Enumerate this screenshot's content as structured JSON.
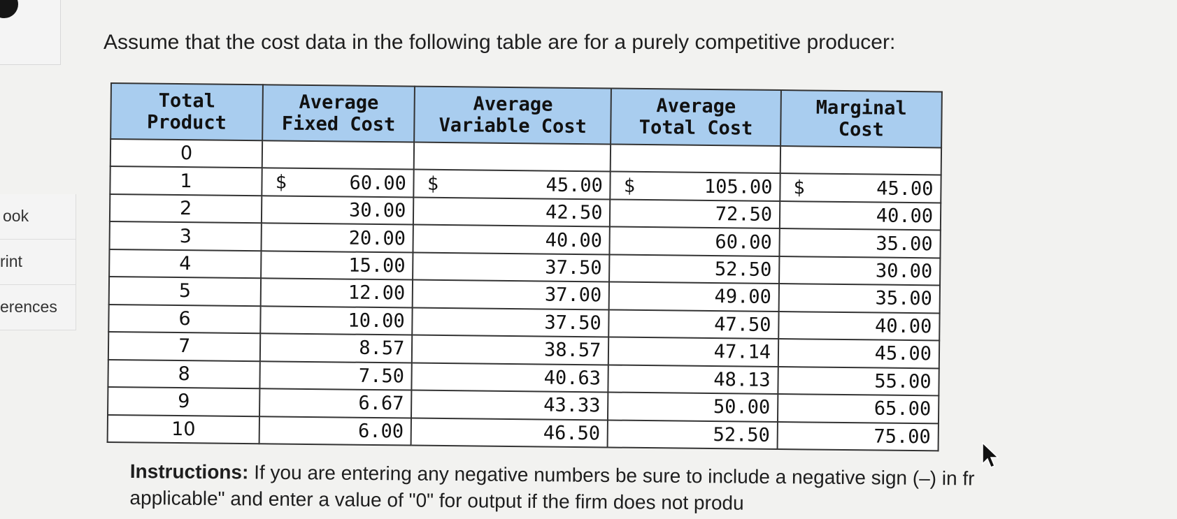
{
  "question": {
    "text": "Assume that the cost data in the following table are for a purely competitive producer:"
  },
  "sidebar": {
    "items": [
      {
        "label": "ook"
      },
      {
        "label": "rint"
      },
      {
        "label": "erences"
      }
    ]
  },
  "table": {
    "headers": [
      {
        "line1": "Total",
        "line2": "Product"
      },
      {
        "line1": "Average",
        "line2": "Fixed Cost"
      },
      {
        "line1": "Average",
        "line2": "Variable Cost"
      },
      {
        "line1": "Average",
        "line2": "Total Cost"
      },
      {
        "line1": "Marginal",
        "line2": "Cost"
      }
    ],
    "currency_symbol": "$",
    "rows": [
      {
        "tp": "0",
        "afc": "",
        "avc": "",
        "atc": "",
        "mc": ""
      },
      {
        "tp": "1",
        "afc": "60.00",
        "avc": "45.00",
        "atc": "105.00",
        "mc": "45.00"
      },
      {
        "tp": "2",
        "afc": "30.00",
        "avc": "42.50",
        "atc": "72.50",
        "mc": "40.00"
      },
      {
        "tp": "3",
        "afc": "20.00",
        "avc": "40.00",
        "atc": "60.00",
        "mc": "35.00"
      },
      {
        "tp": "4",
        "afc": "15.00",
        "avc": "37.50",
        "atc": "52.50",
        "mc": "30.00"
      },
      {
        "tp": "5",
        "afc": "12.00",
        "avc": "37.00",
        "atc": "49.00",
        "mc": "35.00"
      },
      {
        "tp": "6",
        "afc": "10.00",
        "avc": "37.50",
        "atc": "47.50",
        "mc": "40.00"
      },
      {
        "tp": "7",
        "afc": "8.57",
        "avc": "38.57",
        "atc": "47.14",
        "mc": "45.00"
      },
      {
        "tp": "8",
        "afc": "7.50",
        "avc": "40.63",
        "atc": "48.13",
        "mc": "55.00"
      },
      {
        "tp": "9",
        "afc": "6.67",
        "avc": "43.33",
        "atc": "50.00",
        "mc": "65.00"
      },
      {
        "tp": "10",
        "afc": "6.00",
        "avc": "46.50",
        "atc": "52.50",
        "mc": "75.00"
      }
    ]
  },
  "instructions": {
    "label": "Instructions:",
    "line1": " If you are entering any negative numbers be sure to include a negative sign (–) in fr",
    "line2": "applicable\" and enter a value of \"0\" for output if the firm does not produ"
  },
  "colors": {
    "header_bg": "#a9cdef",
    "page_bg": "#f2f2f0"
  },
  "icons": {
    "cursor": "mouse-pointer-icon"
  }
}
